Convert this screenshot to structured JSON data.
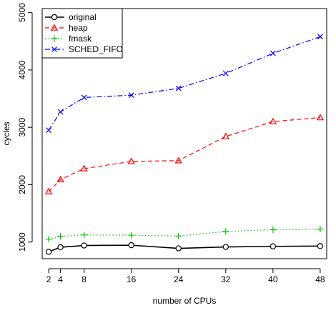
{
  "chart_data": {
    "type": "line",
    "xlabel": "number of CPUs",
    "ylabel": "cycles",
    "x": [
      2,
      4,
      8,
      16,
      24,
      32,
      40,
      48
    ],
    "xticks": [
      2,
      4,
      8,
      16,
      24,
      32,
      40,
      48
    ],
    "yticks": [
      1000,
      2000,
      3000,
      4000,
      5000
    ],
    "xlim": [
      0.9,
      49.1
    ],
    "ylim": [
      710,
      5070
    ],
    "grid": false,
    "legend_position": "top-left",
    "series": [
      {
        "name": "original",
        "color": "#000000",
        "marker": "circle",
        "line_style": "solid",
        "values": [
          830,
          910,
          940,
          945,
          890,
          915,
          925,
          930
        ]
      },
      {
        "name": "heap",
        "color": "#ff0000",
        "marker": "triangle",
        "line_style": "dashed",
        "values": [
          1880,
          2090,
          2280,
          2405,
          2420,
          2840,
          3100,
          3170
        ]
      },
      {
        "name": "fmask",
        "color": "#00c000",
        "marker": "plus",
        "line_style": "dotted",
        "values": [
          1050,
          1100,
          1125,
          1120,
          1105,
          1185,
          1215,
          1225
        ]
      },
      {
        "name": "SCHED_FIFO",
        "color": "#0000ff",
        "marker": "cross",
        "line_style": "dashdot",
        "values": [
          2950,
          3270,
          3520,
          3560,
          3680,
          3940,
          4290,
          4580
        ]
      }
    ]
  }
}
